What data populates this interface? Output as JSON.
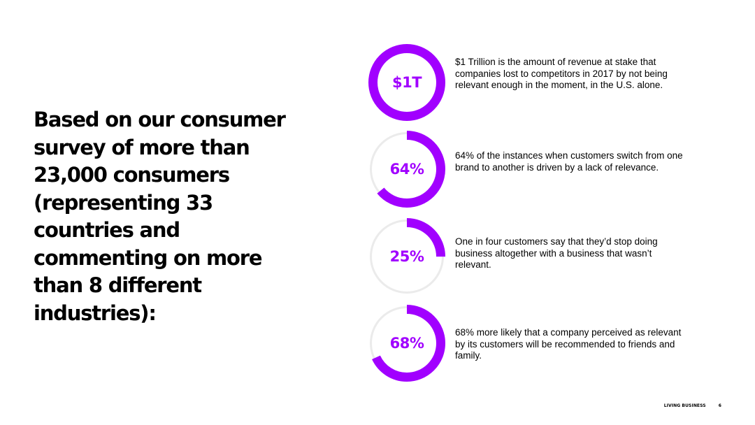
{
  "slide": {
    "headline": "Based on our consumer survey of more than 23,000 consumers (representing 33 countries and commenting on more than 8 different industries):",
    "stats": [
      {
        "label": "$1T",
        "fraction": 1.0,
        "text": "$1 Trillion is the amount of revenue at stake that companies lost to competitors in 2017 by not being relevant enough in the moment, in the U.S. alone."
      },
      {
        "label": "64%",
        "fraction": 0.64,
        "text": "64% of the instances when customers switch from one brand to another is driven by a lack of relevance."
      },
      {
        "label": "25%",
        "fraction": 0.25,
        "text": "One in four customers say that they’d stop doing business altogether with a business that wasn’t relevant."
      },
      {
        "label": "68%",
        "fraction": 0.68,
        "text": "68% more likely that a company perceived as relevant by its customers will be recommended to friends and family."
      }
    ],
    "footer": {
      "brand": "LIVING BUSINESS",
      "page_number": "6"
    }
  },
  "colors": {
    "accent": "#a100ff",
    "track": "#ebebeb"
  }
}
